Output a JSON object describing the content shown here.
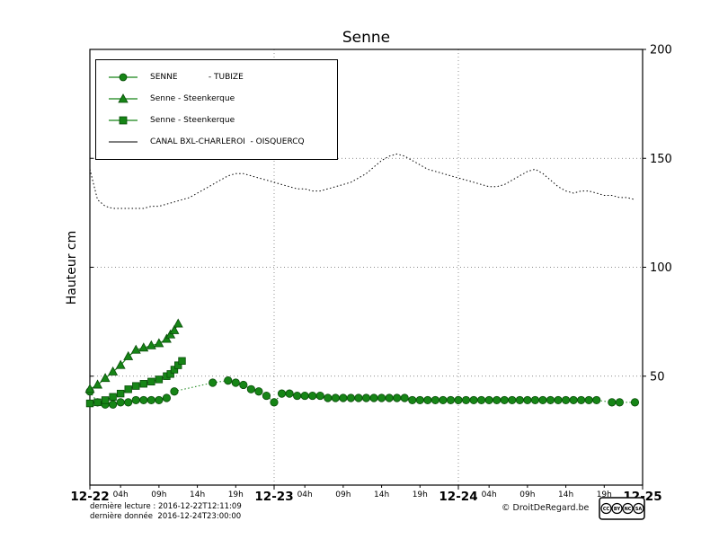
{
  "footer": {
    "line1": "dernière lecture : 2016-12-22T12:11:09",
    "line2": "dernière donnée  2016-12-24T23:00:00",
    "copyright": "© DroitDeRegard.be"
  },
  "badge": {
    "cc": "CC",
    "by": "BY",
    "nc": "NC",
    "sa": "SA"
  },
  "colors": {
    "green": "#168516",
    "green_edge": "#084c08",
    "black": "#000000"
  },
  "chart_data": {
    "type": "line",
    "title": "Senne",
    "xlabel": "",
    "ylabel": "Hauteur cm",
    "ylim": [
      0,
      200
    ],
    "xlim": [
      0,
      72
    ],
    "x_unit": "hours from 2016-12-22 00:00",
    "yticks": [
      50,
      100,
      150,
      200
    ],
    "ytick_side": "right",
    "day_ticks": [
      {
        "hour": 0,
        "label": "12-22"
      },
      {
        "hour": 24,
        "label": "12-23"
      },
      {
        "hour": 48,
        "label": "12-24"
      },
      {
        "hour": 72,
        "label": "12-25"
      }
    ],
    "hour_ticks": [
      {
        "hour": 4,
        "label": "04h"
      },
      {
        "hour": 9,
        "label": "09h"
      },
      {
        "hour": 14,
        "label": "14h"
      },
      {
        "hour": 19,
        "label": "19h"
      },
      {
        "hour": 28,
        "label": "04h"
      },
      {
        "hour": 33,
        "label": "09h"
      },
      {
        "hour": 38,
        "label": "14h"
      },
      {
        "hour": 43,
        "label": "19h"
      },
      {
        "hour": 52,
        "label": "04h"
      },
      {
        "hour": 57,
        "label": "09h"
      },
      {
        "hour": 62,
        "label": "14h"
      },
      {
        "hour": 67,
        "label": "19h"
      }
    ],
    "grid": {
      "horizontal": [
        50,
        100,
        150
      ],
      "vertical": [
        24,
        48
      ]
    },
    "legend_position": "upper left",
    "series": [
      {
        "id": "tubize",
        "name": "SENNE            - TUBIZE",
        "marker": "circle",
        "line": "dotted",
        "color": "#168516",
        "edge": "#084c08",
        "points": [
          [
            0,
            43
          ],
          [
            1,
            38
          ],
          [
            2,
            37
          ],
          [
            3,
            37
          ],
          [
            4,
            38
          ],
          [
            5,
            38
          ],
          [
            6,
            39
          ],
          [
            7,
            39
          ],
          [
            8,
            39
          ],
          [
            9,
            39
          ],
          [
            10,
            40
          ],
          [
            11,
            43
          ],
          [
            16,
            47
          ],
          [
            18,
            48
          ],
          [
            19,
            47
          ],
          [
            20,
            46
          ],
          [
            21,
            44
          ],
          [
            22,
            43
          ],
          [
            23,
            41
          ],
          [
            24,
            38
          ],
          [
            25,
            42
          ],
          [
            26,
            42
          ],
          [
            27,
            41
          ],
          [
            28,
            41
          ],
          [
            29,
            41
          ],
          [
            30,
            41
          ],
          [
            31,
            40
          ],
          [
            32,
            40
          ],
          [
            33,
            40
          ],
          [
            34,
            40
          ],
          [
            35,
            40
          ],
          [
            36,
            40
          ],
          [
            37,
            40
          ],
          [
            38,
            40
          ],
          [
            39,
            40
          ],
          [
            40,
            40
          ],
          [
            41,
            40
          ],
          [
            42,
            39
          ],
          [
            43,
            39
          ],
          [
            44,
            39
          ],
          [
            45,
            39
          ],
          [
            46,
            39
          ],
          [
            47,
            39
          ],
          [
            48,
            39
          ],
          [
            49,
            39
          ],
          [
            50,
            39
          ],
          [
            51,
            39
          ],
          [
            52,
            39
          ],
          [
            53,
            39
          ],
          [
            54,
            39
          ],
          [
            55,
            39
          ],
          [
            56,
            39
          ],
          [
            57,
            39
          ],
          [
            58,
            39
          ],
          [
            59,
            39
          ],
          [
            60,
            39
          ],
          [
            61,
            39
          ],
          [
            62,
            39
          ],
          [
            63,
            39
          ],
          [
            64,
            39
          ],
          [
            65,
            39
          ],
          [
            66,
            39
          ],
          [
            68,
            38
          ],
          [
            69,
            38
          ],
          [
            71,
            38
          ]
        ]
      },
      {
        "id": "steenkerque-triangles",
        "name": "Senne - Steenkerque",
        "marker": "triangle",
        "line": "solid",
        "color": "#168516",
        "edge": "#084c08",
        "points": [
          [
            0,
            44
          ],
          [
            1,
            46
          ],
          [
            2,
            49
          ],
          [
            3,
            52
          ],
          [
            4,
            55
          ],
          [
            5,
            59
          ],
          [
            6,
            62
          ],
          [
            7,
            63
          ],
          [
            8,
            64
          ],
          [
            9,
            65
          ],
          [
            10,
            67
          ],
          [
            10.5,
            69
          ],
          [
            11,
            71
          ],
          [
            11.5,
            74
          ]
        ]
      },
      {
        "id": "steenkerque-squares",
        "name": "Senne - Steenkerque",
        "marker": "square",
        "line": "solid",
        "color": "#168516",
        "edge": "#084c08",
        "points": [
          [
            0,
            37.5
          ],
          [
            1,
            38
          ],
          [
            2,
            39
          ],
          [
            3,
            40.5
          ],
          [
            4,
            42
          ],
          [
            5,
            44
          ],
          [
            6,
            45.5
          ],
          [
            7,
            46.5
          ],
          [
            8,
            47.5
          ],
          [
            9,
            48.5
          ],
          [
            10,
            50
          ],
          [
            10.5,
            51
          ],
          [
            11,
            53
          ],
          [
            11.5,
            55
          ],
          [
            12,
            57
          ]
        ]
      },
      {
        "id": "canal",
        "name": "CANAL BXL-CHARLEROI  - OISQUERCQ",
        "marker": "none",
        "line": "dotted",
        "color": "#000000",
        "edge": "#000000",
        "points": [
          [
            0,
            145
          ],
          [
            1,
            131
          ],
          [
            2,
            128
          ],
          [
            3,
            127
          ],
          [
            4,
            127
          ],
          [
            5,
            127
          ],
          [
            6,
            127
          ],
          [
            7,
            127
          ],
          [
            8,
            128
          ],
          [
            9,
            128
          ],
          [
            10,
            129
          ],
          [
            11,
            130
          ],
          [
            12,
            131
          ],
          [
            13,
            132
          ],
          [
            14,
            134
          ],
          [
            15,
            136
          ],
          [
            16,
            138
          ],
          [
            17,
            140
          ],
          [
            18,
            142
          ],
          [
            19,
            143
          ],
          [
            20,
            143
          ],
          [
            21,
            142
          ],
          [
            22,
            141
          ],
          [
            23,
            140
          ],
          [
            24,
            139
          ],
          [
            25,
            138
          ],
          [
            26,
            137
          ],
          [
            27,
            136
          ],
          [
            28,
            136
          ],
          [
            29,
            135
          ],
          [
            30,
            135
          ],
          [
            31,
            136
          ],
          [
            32,
            137
          ],
          [
            33,
            138
          ],
          [
            34,
            139
          ],
          [
            35,
            141
          ],
          [
            36,
            143
          ],
          [
            37,
            146
          ],
          [
            38,
            149
          ],
          [
            39,
            151
          ],
          [
            40,
            152
          ],
          [
            41,
            151
          ],
          [
            42,
            149
          ],
          [
            43,
            147
          ],
          [
            44,
            145
          ],
          [
            45,
            144
          ],
          [
            46,
            143
          ],
          [
            47,
            142
          ],
          [
            48,
            141
          ],
          [
            49,
            140
          ],
          [
            50,
            139
          ],
          [
            51,
            138
          ],
          [
            52,
            137
          ],
          [
            53,
            137
          ],
          [
            54,
            138
          ],
          [
            55,
            140
          ],
          [
            56,
            142
          ],
          [
            57,
            144
          ],
          [
            58,
            145
          ],
          [
            59,
            143
          ],
          [
            60,
            140
          ],
          [
            61,
            137
          ],
          [
            62,
            135
          ],
          [
            63,
            134
          ],
          [
            64,
            135
          ],
          [
            65,
            135
          ],
          [
            66,
            134
          ],
          [
            67,
            133
          ],
          [
            68,
            133
          ],
          [
            69,
            132
          ],
          [
            70,
            132
          ],
          [
            71,
            131
          ]
        ]
      }
    ]
  }
}
